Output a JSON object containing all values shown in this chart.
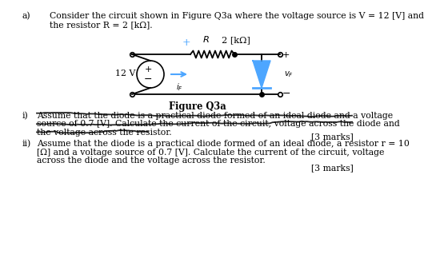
{
  "bg_color": "#ffffff",
  "title_label": "a)",
  "header_line1": "Consider the circuit shown in Figure Q3a where the voltage source is V = 12 [V] and",
  "header_line2": "the resistor R = 2 [kΩ].",
  "figure_label": "Figure Q3a",
  "part_i_label": "i)",
  "part_i_line1": "Assume that the diode is a practical diode formed of an ideal diode and a voltage",
  "part_i_line2": "source of 0.7 [V]. Calculate the current of the circuit, voltage across the diode and",
  "part_i_line3": "the voltage across the resistor.",
  "part_i_marks": "[3 marks]",
  "part_ii_label": "ii)",
  "part_ii_line1": "Assume that the diode is a practical diode formed of an ideal diode, a resistor r = 10",
  "part_ii_line2": "[Ω] and a voltage source of 0.7 [V]. Calculate the current of the circuit, voltage",
  "part_ii_line3": "across the diode and the voltage across the resistor.",
  "part_ii_marks": "[3 marks]",
  "circuit_V": "12 V",
  "circuit_R_label": "R",
  "circuit_R_value": "2 [kΩ]",
  "plus_color": "#4da6ff",
  "diode_color": "#4da6ff",
  "text_color": "#000000",
  "wire_color": "#000000"
}
